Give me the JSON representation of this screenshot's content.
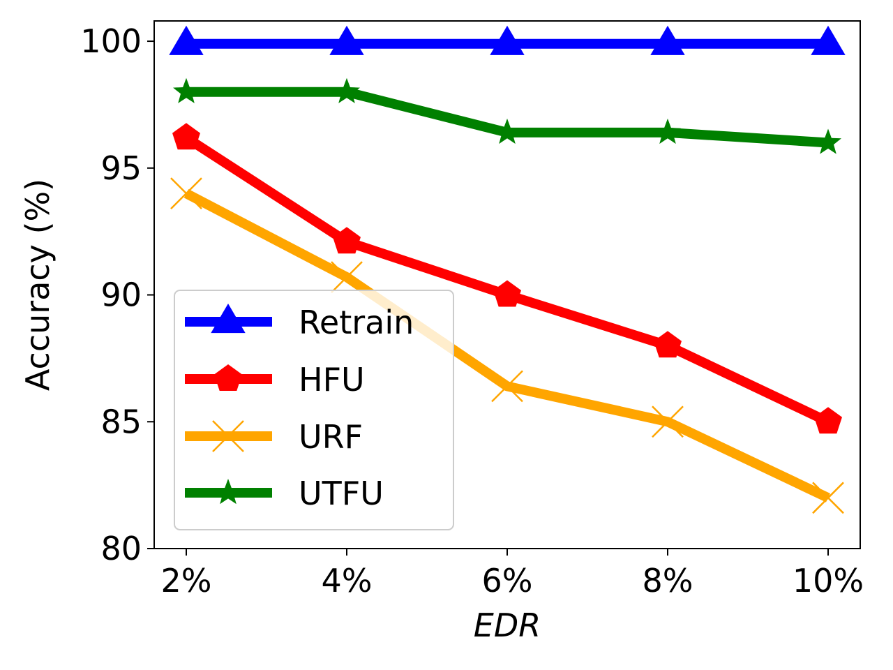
{
  "chart_data": {
    "type": "line",
    "title": "",
    "xlabel": "EDR",
    "ylabel": "Accuracy (%)",
    "categories": [
      "2%",
      "4%",
      "6%",
      "8%",
      "10%"
    ],
    "ylim": [
      80,
      100.8
    ],
    "yticks": [
      80,
      85,
      90,
      95,
      100
    ],
    "grid": false,
    "legend_position": "center-left",
    "series": [
      {
        "name": "Retrain",
        "color": "#0000ff",
        "marker": "triangle",
        "values": [
          99.9,
          99.9,
          99.9,
          99.9,
          99.9
        ]
      },
      {
        "name": "HFU",
        "color": "#ff0000",
        "marker": "pentagon",
        "values": [
          96.2,
          92.1,
          90.0,
          88.0,
          85.0
        ]
      },
      {
        "name": "URF",
        "color": "#ffa500",
        "marker": "x",
        "values": [
          94.0,
          90.7,
          86.4,
          85.0,
          82.0
        ]
      },
      {
        "name": "UTFU",
        "color": "#008000",
        "marker": "star",
        "values": [
          98.0,
          98.0,
          96.4,
          96.4,
          96.0
        ]
      }
    ]
  }
}
